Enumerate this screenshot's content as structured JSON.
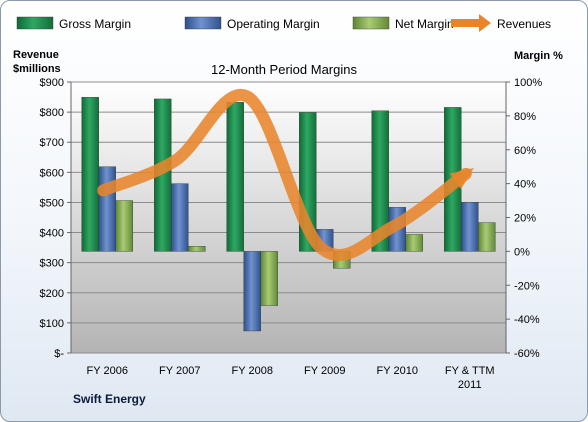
{
  "chart_data": {
    "type": "bar",
    "title": "12-Month Period Margins",
    "company": "Swift Energy",
    "left_axis": {
      "label_line1": "Revenue",
      "label_line2": "$millions",
      "min": 0,
      "max": 900,
      "step": 100,
      "tick_labels": [
        "$-",
        "$100",
        "$200",
        "$300",
        "$400",
        "$500",
        "$600",
        "$700",
        "$800",
        "$900"
      ]
    },
    "right_axis": {
      "label": "Margin %",
      "min": -60,
      "max": 100,
      "step": 20,
      "tick_labels": [
        "-60%",
        "-40%",
        "-20%",
        "0%",
        "20%",
        "40%",
        "60%",
        "80%",
        "100%"
      ]
    },
    "categories": [
      [
        "FY 2006"
      ],
      [
        "FY 2007"
      ],
      [
        "FY 2008"
      ],
      [
        "FY 2009"
      ],
      [
        "FY 2010"
      ],
      [
        "FY & TTM",
        "2011"
      ]
    ],
    "series": [
      {
        "name": "Gross Margin",
        "axis": "right",
        "kind": "bar",
        "color": "#1e8c4e",
        "values": [
          91,
          90,
          88,
          82,
          83,
          85
        ]
      },
      {
        "name": "Operating Margin",
        "axis": "right",
        "kind": "bar",
        "color": "#4a6fae",
        "values": [
          50,
          40,
          -47,
          13,
          26,
          29
        ]
      },
      {
        "name": "Net Margin",
        "axis": "right",
        "kind": "bar",
        "color": "#86ac52",
        "values": [
          30,
          3,
          -32,
          -10,
          10,
          17
        ]
      },
      {
        "name": "Revenues",
        "axis": "left",
        "kind": "line",
        "color": "#e8852b",
        "values": [
          540,
          640,
          850,
          350,
          420,
          595
        ]
      }
    ],
    "legend_position": "top",
    "grid": true
  }
}
